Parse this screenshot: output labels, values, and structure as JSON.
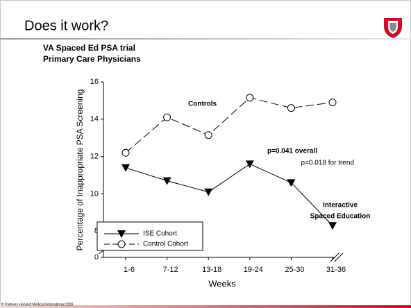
{
  "slide": {
    "heading": "Does it work?",
    "subheading": [
      "VA Spaced Ed PSA trial",
      "Primary Care Physicians"
    ],
    "footer": "© Partners Harvard Medical International 2009"
  },
  "chart_data": {
    "type": "line",
    "categories": [
      "1-6",
      "7-12",
      "13-18",
      "19-24",
      "25-30",
      "31-36"
    ],
    "series": [
      {
        "name": "ISE Cohort",
        "color": "#000000",
        "marker": "triangle-down",
        "dash": false,
        "values": [
          11.4,
          10.7,
          10.1,
          11.6,
          10.6,
          8.3
        ]
      },
      {
        "name": "Control Cohort",
        "color": "#000000",
        "marker": "circle",
        "dash": true,
        "values": [
          12.2,
          14.1,
          13.15,
          15.15,
          14.6,
          14.9
        ]
      }
    ],
    "xlabel": "Weeks",
    "ylabel": "Percentage of Inappropriate PSA Screening",
    "ylim": [
      6.6,
      16
    ],
    "yticks": [
      8,
      10,
      12,
      14,
      16
    ],
    "axis_break_label": "0",
    "legend": "lower-left",
    "annotations": [
      {
        "text": "Controls",
        "bold": true
      },
      {
        "text": "p=0.041 overall",
        "bold": true
      },
      {
        "text": "p=0.018 for trend",
        "bold": false
      },
      {
        "text": "Interactive",
        "bold": true
      },
      {
        "text": "Spaced Education",
        "bold": true
      }
    ]
  }
}
